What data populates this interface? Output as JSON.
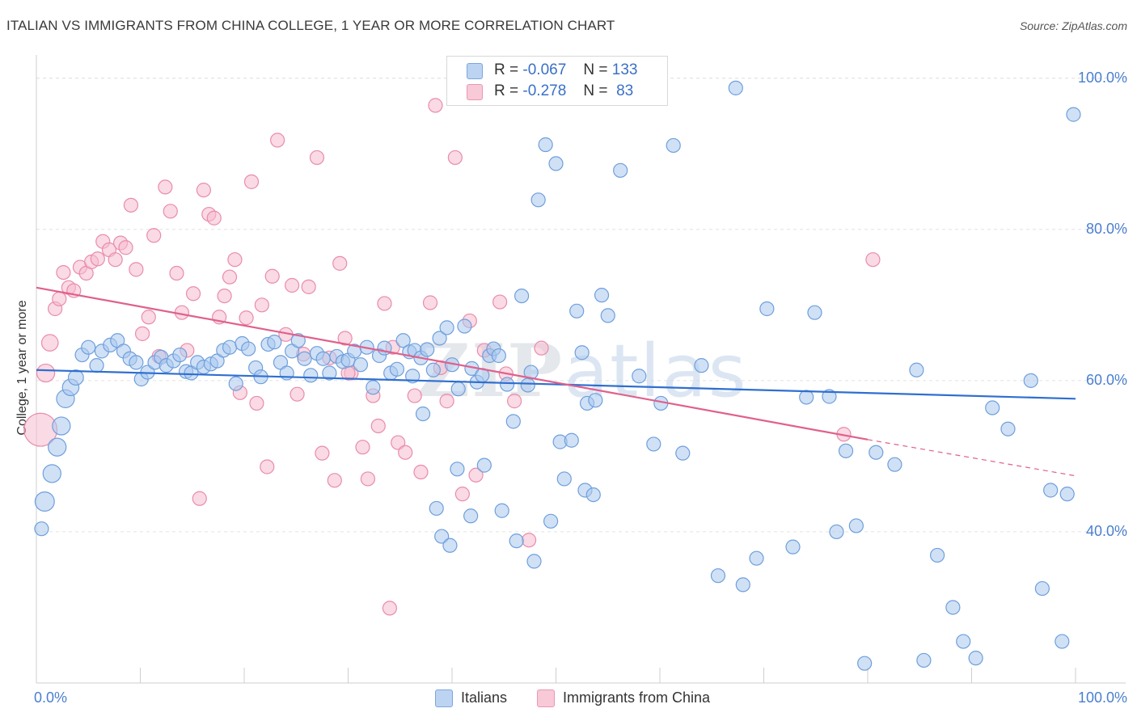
{
  "title": "ITALIAN VS IMMIGRANTS FROM CHINA COLLEGE, 1 YEAR OR MORE CORRELATION CHART",
  "source": "Source: ZipAtlas.com",
  "watermark": "ZIPatlas",
  "legend": {
    "italians": {
      "r_label": "R =",
      "r_value": "-0.067",
      "n_label": "N =",
      "n_value": "133"
    },
    "china": {
      "r_label": "R =",
      "r_value": "-0.278",
      "n_label": "N =",
      "n_value": "83"
    }
  },
  "bottom_legend": {
    "italians": "Italians",
    "china": "Immigrants from China"
  },
  "colors": {
    "italians_fill": "#aac8ee",
    "italians_stroke": "#6f9fdc",
    "italians_line": "#2f6fd0",
    "china_fill": "#f6bccd",
    "china_stroke": "#e98cab",
    "china_line": "#e0608c",
    "tick_color": "#4a7fcf",
    "grid": "#e2e2e2"
  },
  "chart_data": {
    "type": "scatter",
    "title": "ITALIAN VS IMMIGRANTS FROM CHINA COLLEGE, 1 YEAR OR MORE CORRELATION CHART",
    "xlabel": "",
    "ylabel": "College, 1 year or more",
    "xlim": [
      0,
      100
    ],
    "ylim": [
      20,
      102
    ],
    "x_tick_labels": [
      {
        "value": 0,
        "label": "0.0%"
      },
      {
        "value": 100,
        "label": "100.0%"
      }
    ],
    "y_tick_labels": [
      {
        "value": 40,
        "label": "40.0%"
      },
      {
        "value": 60,
        "label": "60.0%"
      },
      {
        "value": 80,
        "label": "80.0%"
      },
      {
        "value": 100,
        "label": "100.0%"
      }
    ],
    "series": [
      {
        "name": "Italians",
        "trend": {
          "x0": 0,
          "y0": 61.4,
          "x1": 100,
          "y1": 57.6
        },
        "points": [
          [
            0.5,
            40.4,
            1
          ],
          [
            0.8,
            44.0,
            1.4
          ],
          [
            1.5,
            47.7,
            1.3
          ],
          [
            2.0,
            51.2,
            1.3
          ],
          [
            2.4,
            54.0,
            1.3
          ],
          [
            2.8,
            57.6,
            1.3
          ],
          [
            3.3,
            59.1,
            1.2
          ],
          [
            3.8,
            60.4,
            1.1
          ],
          [
            4.4,
            63.4,
            1
          ],
          [
            5.0,
            64.4,
            1
          ],
          [
            5.8,
            62.0,
            1
          ],
          [
            6.3,
            63.9,
            1
          ],
          [
            7.1,
            64.7,
            1
          ],
          [
            7.8,
            65.3,
            1
          ],
          [
            8.4,
            63.9,
            1
          ],
          [
            9.0,
            62.9,
            1
          ],
          [
            9.6,
            62.4,
            1
          ],
          [
            10.1,
            60.2,
            1
          ],
          [
            10.7,
            61.1,
            1
          ],
          [
            11.4,
            62.4,
            1
          ],
          [
            12.0,
            63.1,
            1
          ],
          [
            12.5,
            62.0,
            1
          ],
          [
            13.2,
            62.6,
            1
          ],
          [
            13.8,
            63.4,
            1
          ],
          [
            14.4,
            61.2,
            1
          ],
          [
            14.9,
            61.0,
            1
          ],
          [
            15.5,
            62.4,
            1
          ],
          [
            16.1,
            61.8,
            1
          ],
          [
            16.8,
            62.2,
            1
          ],
          [
            17.4,
            62.6,
            1
          ],
          [
            18.0,
            64.0,
            1
          ],
          [
            18.6,
            64.4,
            1
          ],
          [
            19.2,
            59.6,
            1
          ],
          [
            19.8,
            64.9,
            1
          ],
          [
            20.4,
            64.2,
            1
          ],
          [
            21.1,
            61.7,
            1
          ],
          [
            21.6,
            60.5,
            1
          ],
          [
            22.3,
            64.8,
            1
          ],
          [
            22.9,
            65.1,
            1
          ],
          [
            23.5,
            62.4,
            1
          ],
          [
            24.1,
            61.0,
            1
          ],
          [
            24.6,
            63.9,
            1
          ],
          [
            25.2,
            65.3,
            1
          ],
          [
            25.8,
            62.9,
            1
          ],
          [
            26.4,
            60.7,
            1
          ],
          [
            27.0,
            63.6,
            1
          ],
          [
            27.6,
            62.9,
            1
          ],
          [
            28.2,
            61.0,
            1
          ],
          [
            28.9,
            63.2,
            1
          ],
          [
            29.5,
            62.5,
            1
          ],
          [
            30.0,
            62.7,
            1
          ],
          [
            30.6,
            63.9,
            1
          ],
          [
            31.2,
            62.1,
            1
          ],
          [
            31.8,
            64.4,
            1
          ],
          [
            32.4,
            59.1,
            1
          ],
          [
            33.0,
            63.3,
            1
          ],
          [
            33.5,
            64.3,
            1
          ],
          [
            34.1,
            61.0,
            1
          ],
          [
            34.7,
            61.5,
            1
          ],
          [
            35.3,
            65.3,
            1
          ],
          [
            35.9,
            63.8,
            1
          ],
          [
            36.4,
            64.0,
            1
          ],
          [
            37.0,
            63.0,
            1
          ],
          [
            37.6,
            64.1,
            1
          ],
          [
            38.2,
            61.4,
            1
          ],
          [
            38.8,
            65.6,
            1
          ],
          [
            39.5,
            67.0,
            1
          ],
          [
            40.0,
            62.1,
            1
          ],
          [
            40.6,
            58.9,
            1
          ],
          [
            41.2,
            67.2,
            1
          ],
          [
            41.9,
            61.6,
            1
          ],
          [
            42.4,
            59.8,
            1
          ],
          [
            42.9,
            60.7,
            1
          ],
          [
            43.6,
            63.3,
            1
          ],
          [
            44.0,
            64.2,
            1
          ],
          [
            44.5,
            63.3,
            1
          ],
          [
            45.3,
            59.5,
            1
          ],
          [
            45.9,
            54.6,
            1
          ],
          [
            46.7,
            71.2,
            1
          ],
          [
            47.3,
            59.4,
            1
          ],
          [
            47.6,
            61.1,
            1
          ],
          [
            48.3,
            83.9,
            1
          ],
          [
            49.0,
            91.2,
            1
          ],
          [
            50.0,
            88.7,
            1
          ],
          [
            50.4,
            51.9,
            1
          ],
          [
            51.5,
            52.1,
            1
          ],
          [
            52.0,
            69.2,
            1
          ],
          [
            52.5,
            63.7,
            1
          ],
          [
            53.0,
            57.0,
            1
          ],
          [
            53.8,
            57.4,
            1
          ],
          [
            54.4,
            71.3,
            1
          ],
          [
            55.0,
            68.6,
            1
          ],
          [
            56.2,
            87.8,
            1
          ],
          [
            58.0,
            60.6,
            1
          ],
          [
            59.4,
            51.6,
            1
          ],
          [
            60.1,
            57.0,
            1
          ],
          [
            61.3,
            91.1,
            1
          ],
          [
            62.2,
            50.4,
            1
          ],
          [
            64.0,
            62.0,
            1
          ],
          [
            65.6,
            34.2,
            1
          ],
          [
            67.3,
            98.7,
            1
          ],
          [
            68.0,
            33.0,
            1
          ],
          [
            69.3,
            36.5,
            1
          ],
          [
            70.3,
            69.5,
            1
          ],
          [
            72.8,
            38.0,
            1
          ],
          [
            74.1,
            57.8,
            1
          ],
          [
            74.9,
            69.0,
            1
          ],
          [
            76.3,
            57.9,
            1
          ],
          [
            77.0,
            40.0,
            1
          ],
          [
            77.9,
            50.7,
            1
          ],
          [
            78.9,
            40.8,
            1
          ],
          [
            79.7,
            22.6,
            1
          ],
          [
            80.8,
            50.5,
            1
          ],
          [
            82.6,
            48.9,
            1
          ],
          [
            84.7,
            61.4,
            1
          ],
          [
            86.7,
            36.9,
            1
          ],
          [
            88.2,
            30.0,
            1
          ],
          [
            89.2,
            25.5,
            1
          ],
          [
            90.4,
            23.3,
            1
          ],
          [
            92.0,
            56.4,
            1
          ],
          [
            93.5,
            53.6,
            1
          ],
          [
            95.7,
            60.0,
            1
          ],
          [
            96.8,
            32.5,
            1
          ],
          [
            97.6,
            45.5,
            1
          ],
          [
            98.7,
            25.5,
            1
          ],
          [
            99.2,
            45.0,
            1
          ],
          [
            99.8,
            95.2,
            1
          ],
          [
            85.4,
            23.0,
            1
          ],
          [
            36.2,
            60.6,
            1
          ],
          [
            37.2,
            55.6,
            1
          ],
          [
            38.5,
            43.1,
            1
          ],
          [
            39.0,
            39.4,
            1
          ],
          [
            39.8,
            38.2,
            1
          ],
          [
            40.5,
            48.3,
            1
          ],
          [
            41.8,
            42.1,
            1
          ],
          [
            43.1,
            48.8,
            1
          ],
          [
            44.8,
            42.8,
            1
          ],
          [
            46.2,
            38.8,
            1
          ],
          [
            47.9,
            36.1,
            1
          ],
          [
            49.5,
            41.4,
            1
          ],
          [
            50.8,
            47.0,
            1
          ],
          [
            52.8,
            45.5,
            1
          ],
          [
            53.6,
            44.9,
            1
          ]
        ]
      },
      {
        "name": "Immigrants from China",
        "trend": {
          "x0": 0,
          "y0": 72.3,
          "x1": 80,
          "y1": 52.2
        },
        "trend_dashed_to": {
          "x": 100,
          "y": 47.4
        },
        "points": [
          [
            0.4,
            53.5,
            2.4
          ],
          [
            0.9,
            61.0,
            1.3
          ],
          [
            1.3,
            65.0,
            1.2
          ],
          [
            1.8,
            69.5,
            1
          ],
          [
            2.2,
            70.8,
            1
          ],
          [
            2.6,
            74.3,
            1
          ],
          [
            3.1,
            72.3,
            1
          ],
          [
            3.6,
            71.9,
            1
          ],
          [
            4.2,
            75.0,
            1
          ],
          [
            4.8,
            74.2,
            1
          ],
          [
            5.3,
            75.7,
            1
          ],
          [
            5.9,
            76.1,
            1
          ],
          [
            6.4,
            78.4,
            1
          ],
          [
            7.0,
            77.3,
            1
          ],
          [
            7.6,
            76.0,
            1
          ],
          [
            8.1,
            78.2,
            1
          ],
          [
            8.6,
            77.6,
            1
          ],
          [
            9.1,
            83.2,
            1
          ],
          [
            9.6,
            74.7,
            1
          ],
          [
            10.2,
            66.2,
            1
          ],
          [
            10.8,
            68.4,
            1
          ],
          [
            11.3,
            79.2,
            1
          ],
          [
            11.8,
            63.2,
            1
          ],
          [
            12.4,
            85.6,
            1
          ],
          [
            12.9,
            82.4,
            1
          ],
          [
            13.5,
            74.2,
            1
          ],
          [
            14.0,
            69.0,
            1
          ],
          [
            14.5,
            64.0,
            1
          ],
          [
            15.1,
            71.5,
            1
          ],
          [
            15.7,
            44.4,
            1
          ],
          [
            16.1,
            85.2,
            1
          ],
          [
            16.6,
            82.0,
            1
          ],
          [
            17.1,
            81.5,
            1
          ],
          [
            17.6,
            68.4,
            1
          ],
          [
            18.1,
            71.2,
            1
          ],
          [
            18.6,
            73.7,
            1
          ],
          [
            19.1,
            76.0,
            1
          ],
          [
            19.6,
            58.4,
            1
          ],
          [
            20.2,
            68.3,
            1
          ],
          [
            20.7,
            86.3,
            1
          ],
          [
            21.2,
            57.0,
            1
          ],
          [
            21.7,
            70.0,
            1
          ],
          [
            22.2,
            48.6,
            1
          ],
          [
            22.7,
            73.8,
            1
          ],
          [
            23.2,
            91.8,
            1
          ],
          [
            24.0,
            66.1,
            1
          ],
          [
            24.6,
            72.6,
            1
          ],
          [
            25.1,
            58.2,
            1
          ],
          [
            25.7,
            63.5,
            1
          ],
          [
            26.2,
            72.4,
            1
          ],
          [
            27.0,
            89.5,
            1
          ],
          [
            27.5,
            50.4,
            1
          ],
          [
            28.2,
            63.0,
            1
          ],
          [
            28.7,
            46.8,
            1
          ],
          [
            29.2,
            75.5,
            1
          ],
          [
            29.7,
            65.6,
            1
          ],
          [
            30.3,
            61.0,
            1
          ],
          [
            31.4,
            51.2,
            1
          ],
          [
            31.9,
            47.0,
            1
          ],
          [
            32.4,
            58.0,
            1
          ],
          [
            32.9,
            54.0,
            1
          ],
          [
            33.5,
            70.2,
            1
          ],
          [
            34.3,
            64.4,
            1
          ],
          [
            34.8,
            51.8,
            1
          ],
          [
            35.5,
            50.5,
            1
          ],
          [
            36.4,
            58.0,
            1
          ],
          [
            37.0,
            47.9,
            1
          ],
          [
            37.9,
            70.3,
            1
          ],
          [
            38.4,
            96.4,
            1
          ],
          [
            38.9,
            61.7,
            1
          ],
          [
            39.5,
            57.3,
            1
          ],
          [
            40.3,
            89.5,
            1
          ],
          [
            41.0,
            45.0,
            1
          ],
          [
            41.7,
            67.9,
            1
          ],
          [
            42.3,
            47.5,
            1
          ],
          [
            43.1,
            64.0,
            1
          ],
          [
            44.6,
            70.4,
            1
          ],
          [
            45.2,
            60.9,
            1
          ],
          [
            46.0,
            57.3,
            1
          ],
          [
            47.4,
            38.9,
            1
          ],
          [
            48.6,
            64.3,
            1
          ],
          [
            77.7,
            52.9,
            1
          ],
          [
            80.5,
            76.0,
            1
          ],
          [
            34.0,
            29.9,
            1
          ],
          [
            30.0,
            61.0,
            1
          ]
        ]
      }
    ]
  }
}
